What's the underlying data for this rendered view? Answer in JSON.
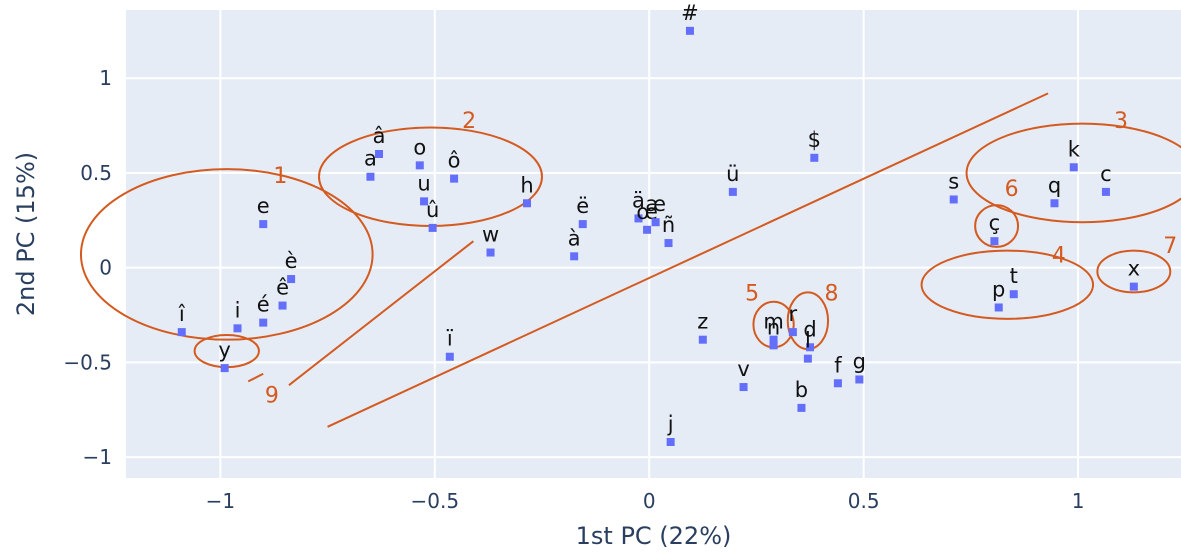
{
  "chart_data": {
    "type": "scatter",
    "title": "",
    "xlabel": "1st PC (22%)",
    "ylabel": "2nd PC (15%)",
    "xlim": [
      -1.22,
      1.24
    ],
    "ylim": [
      -1.11,
      1.36
    ],
    "xticks": [
      -1,
      -0.5,
      0,
      0.5,
      1
    ],
    "yticks": [
      -1,
      -0.5,
      0,
      0.5,
      1
    ],
    "xtick_labels": [
      "−1",
      "−0.5",
      "0",
      "0.5",
      "1"
    ],
    "ytick_labels": [
      "−1",
      "−0.5",
      "0",
      "0.5",
      "1"
    ],
    "grid": true,
    "colors": {
      "plot_bg": "#e5ecf6",
      "grid": "#ffffff",
      "marker": "#636efa",
      "annotation": "#d45a1f"
    },
    "points": [
      {
        "label": "#",
        "x": 0.095,
        "y": 1.25
      },
      {
        "label": "$",
        "x": 0.385,
        "y": 0.58
      },
      {
        "label": "â",
        "x": -0.63,
        "y": 0.6
      },
      {
        "label": "a",
        "x": -0.65,
        "y": 0.48
      },
      {
        "label": "o",
        "x": -0.535,
        "y": 0.54
      },
      {
        "label": "ô",
        "x": -0.455,
        "y": 0.47
      },
      {
        "label": "u",
        "x": -0.525,
        "y": 0.35
      },
      {
        "label": "û",
        "x": -0.505,
        "y": 0.21
      },
      {
        "label": "h",
        "x": -0.285,
        "y": 0.34
      },
      {
        "label": "w",
        "x": -0.37,
        "y": 0.08
      },
      {
        "label": "e",
        "x": -0.9,
        "y": 0.23
      },
      {
        "label": "è",
        "x": -0.835,
        "y": -0.06
      },
      {
        "label": "ê",
        "x": -0.855,
        "y": -0.2
      },
      {
        "label": "é",
        "x": -0.9,
        "y": -0.29
      },
      {
        "label": "i",
        "x": -0.96,
        "y": -0.32
      },
      {
        "label": "î",
        "x": -1.09,
        "y": -0.34
      },
      {
        "label": "y",
        "x": -0.99,
        "y": -0.53
      },
      {
        "label": "ï",
        "x": -0.465,
        "y": -0.47
      },
      {
        "label": "ë",
        "x": -0.155,
        "y": 0.23
      },
      {
        "label": "à",
        "x": -0.175,
        "y": 0.06
      },
      {
        "label": "ä",
        "x": -0.025,
        "y": 0.26
      },
      {
        "label": "œ",
        "x": -0.005,
        "y": 0.2
      },
      {
        "label": "æ",
        "x": 0.015,
        "y": 0.24
      },
      {
        "label": "ñ",
        "x": 0.045,
        "y": 0.13
      },
      {
        "label": "ü",
        "x": 0.195,
        "y": 0.4
      },
      {
        "label": "s",
        "x": 0.71,
        "y": 0.36
      },
      {
        "label": "ç",
        "x": 0.805,
        "y": 0.14
      },
      {
        "label": "k",
        "x": 0.99,
        "y": 0.53
      },
      {
        "label": "q",
        "x": 0.945,
        "y": 0.34
      },
      {
        "label": "c",
        "x": 1.065,
        "y": 0.4
      },
      {
        "label": "t",
        "x": 0.85,
        "y": -0.14
      },
      {
        "label": "p",
        "x": 0.815,
        "y": -0.21
      },
      {
        "label": "x",
        "x": 1.13,
        "y": -0.1
      },
      {
        "label": "z",
        "x": 0.125,
        "y": -0.38
      },
      {
        "label": "m",
        "x": 0.29,
        "y": -0.38
      },
      {
        "label": "n",
        "x": 0.29,
        "y": -0.41
      },
      {
        "label": "r",
        "x": 0.335,
        "y": -0.34
      },
      {
        "label": "d",
        "x": 0.375,
        "y": -0.42
      },
      {
        "label": "l",
        "x": 0.37,
        "y": -0.48
      },
      {
        "label": "v",
        "x": 0.22,
        "y": -0.63
      },
      {
        "label": "f",
        "x": 0.44,
        "y": -0.61
      },
      {
        "label": "g",
        "x": 0.49,
        "y": -0.59
      },
      {
        "label": "b",
        "x": 0.355,
        "y": -0.74
      },
      {
        "label": "j",
        "x": 0.05,
        "y": -0.92
      }
    ],
    "annotations": [
      {
        "label": "1",
        "type": "ellipse",
        "cx": -0.985,
        "cy": 0.07,
        "rx": 0.34,
        "ry": 0.45,
        "label_x": -0.86,
        "label_y": 0.49
      },
      {
        "label": "2",
        "type": "ellipse",
        "cx": -0.51,
        "cy": 0.48,
        "rx": 0.26,
        "ry": 0.26,
        "label_x": -0.42,
        "label_y": 0.78
      },
      {
        "label": "3",
        "type": "ellipse",
        "cx": 1.01,
        "cy": 0.5,
        "rx": 0.27,
        "ry": 0.26,
        "label_x": 1.1,
        "label_y": 0.78
      },
      {
        "label": "4",
        "type": "ellipse",
        "cx": 0.835,
        "cy": -0.09,
        "rx": 0.2,
        "ry": 0.18,
        "label_x": 0.955,
        "label_y": 0.07
      },
      {
        "label": "5",
        "type": "ellipse",
        "cx": 0.29,
        "cy": -0.3,
        "rx": 0.047,
        "ry": 0.12,
        "label_x": 0.24,
        "label_y": -0.13
      },
      {
        "label": "6",
        "type": "ellipse",
        "cx": 0.81,
        "cy": 0.22,
        "rx": 0.05,
        "ry": 0.11,
        "label_x": 0.845,
        "label_y": 0.42
      },
      {
        "label": "7",
        "type": "ellipse",
        "cx": 1.13,
        "cy": -0.02,
        "rx": 0.085,
        "ry": 0.11,
        "label_x": 1.215,
        "label_y": 0.12
      },
      {
        "label": "8",
        "type": "ellipse",
        "cx": 0.37,
        "cy": -0.28,
        "rx": 0.047,
        "ry": 0.15,
        "label_x": 0.425,
        "label_y": -0.13
      },
      {
        "label": "9",
        "type": "ellipse",
        "cx": -0.985,
        "cy": -0.44,
        "rx": 0.075,
        "ry": 0.085,
        "label_x": -0.88,
        "label_y": -0.67
      },
      {
        "type": "line",
        "x1": -0.9,
        "y1": -0.56,
        "x2": -0.935,
        "y2": -0.6
      },
      {
        "type": "line",
        "x1": -0.84,
        "y1": -0.62,
        "x2": -0.41,
        "y2": 0.14
      },
      {
        "type": "line",
        "x1": -0.75,
        "y1": -0.84,
        "x2": 0.93,
        "y2": 0.92
      }
    ]
  }
}
